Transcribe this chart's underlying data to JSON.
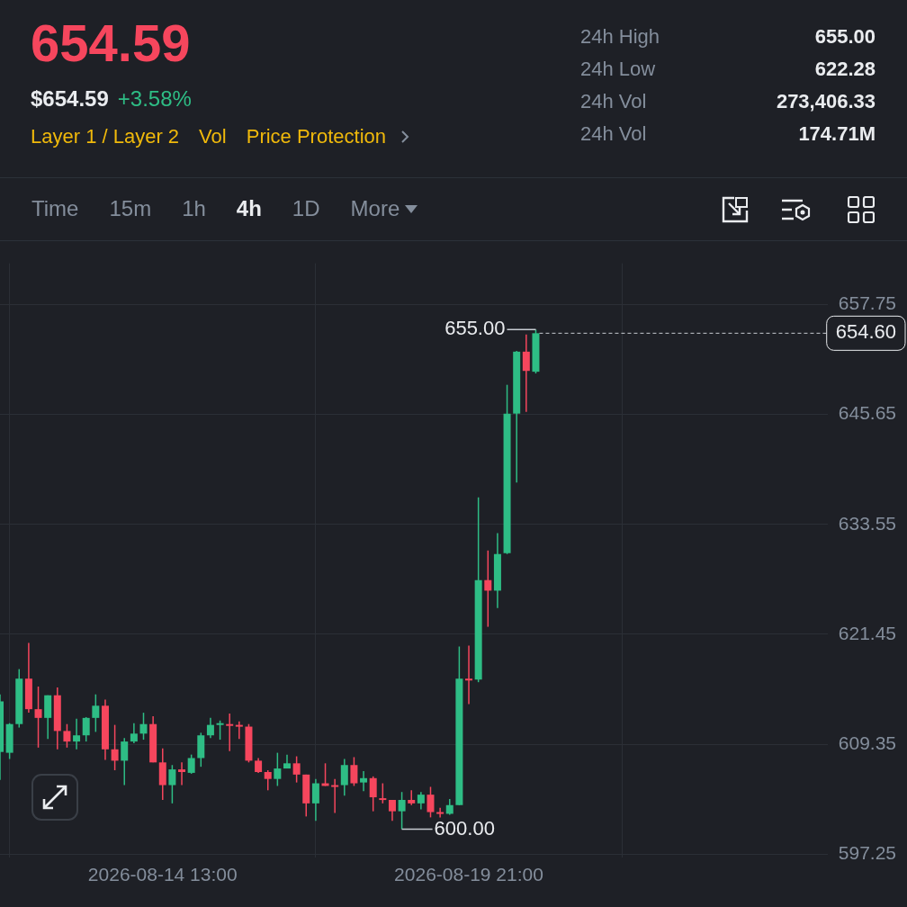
{
  "chart_data": {
    "type": "candlestick",
    "title": "654.59",
    "subtitle": "$654.59 +3.58%",
    "x": [
      "2026-08-11T17:00",
      "2026-08-11T21:00",
      "2026-08-12T01:00",
      "2026-08-12T05:00",
      "2026-08-12T09:00",
      "2026-08-12T13:00",
      "2026-08-12T17:00",
      "2026-08-12T21:00",
      "2026-08-13T01:00",
      "2026-08-13T05:00",
      "2026-08-13T09:00",
      "2026-08-13T13:00",
      "2026-08-13T17:00",
      "2026-08-13T21:00",
      "2026-08-14T01:00",
      "2026-08-14T05:00",
      "2026-08-14T09:00",
      "2026-08-14T13:00",
      "2026-08-14T17:00",
      "2026-08-14T21:00",
      "2026-08-15T01:00",
      "2026-08-15T05:00",
      "2026-08-15T09:00",
      "2026-08-15T13:00",
      "2026-08-15T17:00",
      "2026-08-15T21:00",
      "2026-08-16T01:00",
      "2026-08-16T05:00",
      "2026-08-16T09:00",
      "2026-08-16T13:00",
      "2026-08-16T17:00",
      "2026-08-16T21:00",
      "2026-08-17T01:00",
      "2026-08-17T05:00",
      "2026-08-17T09:00",
      "2026-08-17T13:00",
      "2026-08-17T17:00",
      "2026-08-17T21:00",
      "2026-08-18T01:00",
      "2026-08-18T05:00",
      "2026-08-18T09:00",
      "2026-08-18T13:00",
      "2026-08-18T17:00",
      "2026-08-18T21:00",
      "2026-08-19T01:00",
      "2026-08-19T05:00",
      "2026-08-19T09:00",
      "2026-08-19T13:00",
      "2026-08-19T17:00",
      "2026-08-19T21:00",
      "2026-08-20T01:00",
      "2026-08-20T05:00",
      "2026-08-20T09:00",
      "2026-08-20T13:00",
      "2026-08-20T17:00",
      "2026-08-20T21:00",
      "2026-08-21T01:00"
    ],
    "ohlc": [
      [
        608.5,
        614.84,
        605.43,
        614.07
      ],
      [
        608.41,
        611.67,
        607.73,
        611.57
      ],
      [
        611.57,
        617.62,
        611.19,
        616.57
      ],
      [
        616.57,
        620.5,
        612.82,
        613.21
      ],
      [
        613.21,
        615.7,
        608.98,
        612.25
      ],
      [
        612.25,
        614.74,
        609.94,
        614.74
      ],
      [
        614.74,
        615.61,
        608.79,
        610.81
      ],
      [
        610.81,
        611.57,
        608.98,
        609.65
      ],
      [
        609.65,
        612.15,
        608.79,
        610.33
      ],
      [
        610.33,
        612.34,
        609.65,
        612.25
      ],
      [
        612.25,
        614.84,
        610.71,
        613.59
      ],
      [
        613.59,
        614.26,
        607.64,
        608.79
      ],
      [
        608.79,
        611.48,
        606.49,
        607.54
      ],
      [
        607.54,
        610.04,
        604.85,
        609.65
      ],
      [
        609.65,
        611.67,
        609.46,
        610.52
      ],
      [
        610.52,
        612.82,
        609.85,
        611.57
      ],
      [
        611.57,
        612.44,
        607.35,
        607.35
      ],
      [
        607.35,
        608.89,
        603.22,
        604.85
      ],
      [
        604.85,
        607.06,
        602.84,
        606.58
      ],
      [
        606.58,
        607.35,
        604.85,
        606.29
      ],
      [
        606.2,
        608.21,
        606.1,
        607.83
      ],
      [
        607.83,
        610.61,
        606.87,
        610.33
      ],
      [
        610.33,
        612.25,
        610.04,
        611.48
      ],
      [
        611.48,
        611.96,
        609.85,
        611.67
      ],
      [
        611.57,
        612.73,
        608.6,
        611.48
      ],
      [
        611.48,
        611.86,
        609.94,
        611.29
      ],
      [
        611.29,
        611.57,
        607.35,
        607.54
      ],
      [
        607.54,
        607.83,
        606.2,
        606.29
      ],
      [
        606.29,
        606.49,
        604.28,
        605.53
      ],
      [
        605.53,
        608.41,
        604.76,
        606.68
      ],
      [
        606.68,
        608.21,
        606.68,
        607.25
      ],
      [
        607.25,
        608.02,
        605.14,
        606.01
      ],
      [
        606.01,
        606.01,
        601.4,
        602.84
      ],
      [
        602.84,
        605.53,
        600.92,
        605.05
      ],
      [
        605.05,
        607.25,
        604.76,
        604.76
      ],
      [
        604.85,
        605.53,
        601.78,
        604.76
      ],
      [
        604.85,
        607.73,
        603.7,
        607.06
      ],
      [
        607.06,
        607.93,
        604.76,
        605.05
      ],
      [
        605.14,
        606.39,
        604.18,
        605.62
      ],
      [
        605.62,
        605.81,
        601.97,
        603.51
      ],
      [
        603.41,
        605.05,
        602.84,
        603.22
      ],
      [
        603.22,
        603.22,
        600.92,
        601.97
      ],
      [
        601.97,
        604.09,
        600.0,
        603.22
      ],
      [
        603.22,
        604.28,
        602.65,
        602.84
      ],
      [
        602.84,
        604.09,
        602.17,
        603.8
      ],
      [
        603.8,
        604.66,
        601.3,
        601.88
      ],
      [
        601.88,
        602.36,
        601.3,
        601.69
      ],
      [
        601.69,
        603.32,
        601.59,
        602.65
      ],
      [
        602.65,
        620.11,
        602.65,
        616.57
      ],
      [
        616.57,
        620.21,
        613.78,
        616.37
      ],
      [
        616.47,
        636.53,
        616.18,
        627.42
      ],
      [
        627.42,
        630.68,
        622.28,
        626.26
      ],
      [
        626.26,
        632.6,
        624.34,
        630.29
      ],
      [
        630.39,
        648.92,
        630.29,
        645.75
      ],
      [
        645.75,
        652.66,
        638.17,
        652.57
      ],
      [
        652.57,
        654.45,
        645.94,
        650.45
      ],
      [
        650.36,
        655.0,
        650.17,
        654.6
      ]
    ],
    "colors": [
      "#2ebd85",
      "#2ebd85",
      "#2ebd85",
      "#f6465d",
      "#f6465d",
      "#2ebd85",
      "#f6465d",
      "#f6465d",
      "#2ebd85",
      "#2ebd85",
      "#2ebd85",
      "#f6465d",
      "#f6465d",
      "#2ebd85",
      "#2ebd85",
      "#2ebd85",
      "#f6465d",
      "#f6465d",
      "#2ebd85",
      "#f6465d",
      "#2ebd85",
      "#2ebd85",
      "#2ebd85",
      "#2ebd85",
      "#f6465d",
      "#f6465d",
      "#f6465d",
      "#f6465d",
      "#f6465d",
      "#2ebd85",
      "#2ebd85",
      "#f6465d",
      "#f6465d",
      "#2ebd85",
      "#f6465d",
      "#f6465d",
      "#2ebd85",
      "#f6465d",
      "#2ebd85",
      "#f6465d",
      "#f6465d",
      "#f6465d",
      "#2ebd85",
      "#f6465d",
      "#2ebd85",
      "#f6465d",
      "#f6465d",
      "#2ebd85",
      "#2ebd85",
      "#f6465d",
      "#2ebd85",
      "#f6465d",
      "#2ebd85",
      "#2ebd85",
      "#2ebd85",
      "#f6465d",
      "#2ebd85"
    ],
    "xlim": [
      "2026-08-11T17:00",
      "2026-08-26T03:00"
    ],
    "xticks": [
      {
        "value": "2026-08-14T13:00",
        "label": "2026-08-14 13:00"
      },
      {
        "value": "2026-08-19T21:00",
        "label": "2026-08-19 21:00"
      }
    ],
    "ylim": [
      596.9,
      662.3
    ],
    "yticks": [
      597.25,
      609.35,
      621.45,
      633.55,
      645.65,
      657.75
    ],
    "grid": true,
    "ref_lines": [
      {
        "axis": "y",
        "value": 654.6,
        "label": "654.60",
        "line_style": "dashed"
      }
    ],
    "annotations": [
      "Layer 1 / Layer 2",
      "Vol",
      "Price Protection",
      "24h High",
      "655.00",
      "24h Low",
      "622.28",
      "24h Vol",
      "273,406.33",
      "24h Vol",
      "174.71M",
      "Time",
      "15m",
      "1h",
      "4h",
      "1D",
      "More",
      {
        "text": "655.00",
        "x": "2026-08-21T01:00",
        "y": 655.0
      },
      {
        "text": "600.00",
        "x": "2026-08-18T17:00",
        "y": 600.0
      }
    ]
  }
}
